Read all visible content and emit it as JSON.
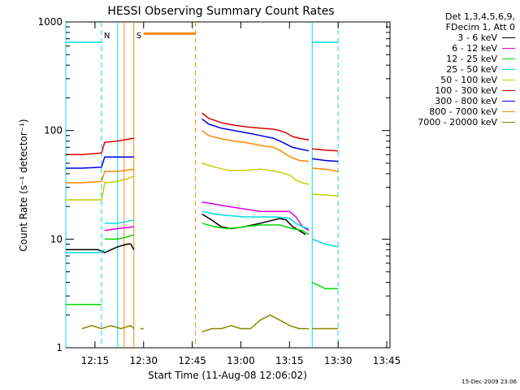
{
  "chart_data": {
    "type": "line",
    "title": "HESSI Observing Summary Count Rates",
    "xlabel": "Start Time (11-Aug-08 12:06:02)",
    "ylabel": "Count Rate (s⁻¹ detector⁻¹)",
    "x_unit": "minutes after 12:06:02",
    "xlim": [
      0,
      100
    ],
    "ylim": [
      1,
      1000
    ],
    "yscale": "log",
    "x_ticks": [
      {
        "value": 9,
        "label": "12:15"
      },
      {
        "value": 24,
        "label": "12:30"
      },
      {
        "value": 39,
        "label": "12:45"
      },
      {
        "value": 54,
        "label": "13:00"
      },
      {
        "value": 69,
        "label": "13:15"
      },
      {
        "value": 84,
        "label": "13:30"
      },
      {
        "value": 99,
        "label": "13:45"
      }
    ],
    "y_ticks": [
      {
        "value": 1,
        "label": "1"
      },
      {
        "value": 10,
        "label": "10"
      },
      {
        "value": 100,
        "label": "100"
      },
      {
        "value": 1000,
        "label": "1000"
      }
    ],
    "legend": {
      "title_lines": [
        "Det 1,3,4,5,6,9,",
        "FDecim 1, Att 0"
      ],
      "position": "right"
    },
    "series": [
      {
        "name": "3 - 6 keV",
        "color": "#000000",
        "segments": [
          [
            [
              0,
              8
            ],
            [
              5,
              8
            ],
            [
              10,
              8
            ],
            [
              12,
              7.5
            ],
            [
              14,
              8
            ],
            [
              16,
              8.5
            ],
            [
              19,
              9
            ],
            [
              20,
              9
            ],
            [
              21,
              8
            ]
          ],
          [
            [
              42,
              17
            ],
            [
              45,
              15
            ],
            [
              48,
              13
            ],
            [
              51,
              12.5
            ],
            [
              55,
              13
            ],
            [
              60,
              14
            ],
            [
              64,
              15
            ],
            [
              66,
              15.5
            ],
            [
              68,
              15
            ],
            [
              70,
              13
            ],
            [
              72,
              12
            ],
            [
              74,
              11
            ]
          ]
        ]
      },
      {
        "name": "6 - 12 keV",
        "color": "#dd00dd",
        "segments": [
          [
            [
              12,
              12
            ],
            [
              16,
              12.5
            ],
            [
              21,
              13
            ]
          ],
          [
            [
              42,
              22
            ],
            [
              46,
              21
            ],
            [
              50,
              20
            ],
            [
              55,
              19
            ],
            [
              60,
              18
            ],
            [
              65,
              18
            ],
            [
              69,
              18
            ],
            [
              71,
              16
            ],
            [
              73,
              13
            ],
            [
              75,
              12
            ]
          ]
        ]
      },
      {
        "name": "12 - 25 keV",
        "color": "#00dd00",
        "segments": [
          [
            [
              0,
              2.5
            ],
            [
              11,
              2.5
            ]
          ],
          [
            [
              12,
              10
            ],
            [
              16,
              10
            ],
            [
              19,
              10.5
            ],
            [
              21,
              11
            ]
          ],
          [
            [
              42,
              14
            ],
            [
              46,
              13
            ],
            [
              50,
              12.5
            ],
            [
              55,
              13
            ],
            [
              60,
              13.5
            ],
            [
              66,
              13.5
            ],
            [
              68,
              13
            ],
            [
              70,
              12.5
            ],
            [
              73,
              12
            ],
            [
              75,
              11
            ]
          ],
          [
            [
              76,
              4
            ],
            [
              80,
              3.5
            ],
            [
              84,
              3.5
            ]
          ]
        ]
      },
      {
        "name": "25 - 50 keV",
        "color": "#00dddd",
        "segments": [
          [
            [
              0,
              650
            ],
            [
              11,
              650
            ]
          ],
          [
            [
              0,
              7.5
            ],
            [
              5,
              7.5
            ],
            [
              10,
              7.5
            ],
            [
              12,
              8
            ]
          ],
          [
            [
              12,
              14
            ],
            [
              16,
              14
            ],
            [
              21,
              15
            ]
          ],
          [
            [
              42,
              18
            ],
            [
              46,
              17
            ],
            [
              50,
              16.5
            ],
            [
              55,
              16
            ],
            [
              60,
              16
            ],
            [
              65,
              16
            ],
            [
              69,
              15.5
            ],
            [
              71,
              14
            ],
            [
              73,
              13
            ],
            [
              75,
              12.5
            ]
          ],
          [
            [
              76,
              10
            ],
            [
              80,
              9
            ],
            [
              84,
              8.5
            ]
          ],
          [
            [
              76,
              650
            ],
            [
              84,
              650
            ]
          ]
        ]
      },
      {
        "name": "50 - 100 keV",
        "color": "#cccc00",
        "segments": [
          [
            [
              0,
              23
            ],
            [
              5,
              23
            ],
            [
              11,
              23
            ],
            [
              12,
              33
            ],
            [
              16,
              34
            ],
            [
              19,
              36
            ],
            [
              21,
              38
            ]
          ],
          [
            [
              42,
              50
            ],
            [
              46,
              46
            ],
            [
              50,
              43
            ],
            [
              55,
              43
            ],
            [
              60,
              44
            ],
            [
              65,
              42
            ],
            [
              69,
              39
            ],
            [
              71,
              35
            ],
            [
              73,
              33
            ],
            [
              75,
              32
            ]
          ],
          [
            [
              76,
              26
            ],
            [
              80,
              25.5
            ],
            [
              84,
              25
            ]
          ]
        ]
      },
      {
        "name": "100 - 300 keV",
        "color": "#dd0000",
        "segments": [
          [
            [
              0,
              60
            ],
            [
              5,
              60
            ],
            [
              11,
              62
            ],
            [
              12,
              78
            ],
            [
              16,
              80
            ],
            [
              19,
              83
            ],
            [
              21,
              85
            ]
          ],
          [
            [
              42,
              145
            ],
            [
              44,
              130
            ],
            [
              48,
              118
            ],
            [
              52,
              112
            ],
            [
              56,
              108
            ],
            [
              60,
              105
            ],
            [
              64,
              103
            ],
            [
              66,
              100
            ],
            [
              68,
              95
            ],
            [
              70,
              88
            ],
            [
              72,
              85
            ],
            [
              75,
              82
            ]
          ],
          [
            [
              76,
              68
            ],
            [
              80,
              66
            ],
            [
              84,
              65
            ]
          ]
        ]
      },
      {
        "name": "300 - 800 keV",
        "color": "#0000dd",
        "segments": [
          [
            [
              0,
              45
            ],
            [
              5,
              45
            ],
            [
              11,
              46
            ],
            [
              12,
              57
            ],
            [
              16,
              57
            ],
            [
              21,
              57
            ]
          ],
          [
            [
              42,
              128
            ],
            [
              44,
              115
            ],
            [
              48,
              105
            ],
            [
              52,
              100
            ],
            [
              56,
              95
            ],
            [
              60,
              90
            ],
            [
              64,
              85
            ],
            [
              66,
              80
            ],
            [
              68,
              75
            ],
            [
              70,
              70
            ],
            [
              72,
              68
            ],
            [
              75,
              65
            ]
          ],
          [
            [
              76,
              55
            ],
            [
              80,
              53
            ],
            [
              84,
              52
            ]
          ]
        ]
      },
      {
        "name": "800 - 7000 keV",
        "color": "#ff8800",
        "segments": [
          [
            [
              0,
              33
            ],
            [
              5,
              33
            ],
            [
              11,
              34
            ],
            [
              12,
              42
            ],
            [
              16,
              42
            ],
            [
              21,
              44
            ]
          ],
          [
            [
              42,
              100
            ],
            [
              44,
              90
            ],
            [
              48,
              84
            ],
            [
              52,
              80
            ],
            [
              56,
              77
            ],
            [
              60,
              73
            ],
            [
              64,
              70
            ],
            [
              66,
              66
            ],
            [
              68,
              60
            ],
            [
              70,
              56
            ],
            [
              72,
              53
            ],
            [
              75,
              52
            ]
          ],
          [
            [
              76,
              45
            ],
            [
              80,
              44
            ],
            [
              84,
              42
            ]
          ]
        ]
      },
      {
        "name": "7000 - 20000 keV",
        "color": "#888800",
        "segments": [
          [
            [
              5,
              1.5
            ],
            [
              8,
              1.6
            ],
            [
              11,
              1.5
            ],
            [
              14,
              1.6
            ],
            [
              17,
              1.5
            ],
            [
              20,
              1.6
            ],
            [
              21,
              1.5
            ]
          ],
          [
            [
              23,
              1.5
            ],
            [
              24,
              1.5
            ]
          ],
          [
            [
              42,
              1.4
            ],
            [
              45,
              1.5
            ],
            [
              48,
              1.5
            ],
            [
              51,
              1.6
            ],
            [
              54,
              1.5
            ],
            [
              57,
              1.5
            ],
            [
              60,
              1.8
            ],
            [
              63,
              2.0
            ],
            [
              66,
              1.8
            ],
            [
              69,
              1.6
            ],
            [
              72,
              1.5
            ],
            [
              75,
              1.5
            ]
          ],
          [
            [
              76,
              1.5
            ],
            [
              80,
              1.5
            ],
            [
              84,
              1.5
            ]
          ]
        ]
      }
    ],
    "flag_bars": [
      {
        "label": "",
        "color": "#ff8800",
        "x": [
          24,
          40
        ],
        "y": 780
      }
    ],
    "flag_markers": [
      {
        "label": "N",
        "color": "#00dddd",
        "x": 11
      },
      {
        "label": "S",
        "color": "#ff8800",
        "x": 21
      }
    ],
    "verticals": [
      {
        "x": 0,
        "color": "#00dddd",
        "style": "solid"
      },
      {
        "x": 11,
        "color": "#00dddd",
        "style": "dashed"
      },
      {
        "x": 16,
        "color": "#00dddd",
        "style": "solid"
      },
      {
        "x": 18,
        "color": "#ff8800",
        "style": "solid"
      },
      {
        "x": 21,
        "color": "#ff8800",
        "style": "solid"
      },
      {
        "x": 40,
        "color": "#ff8800",
        "style": "dashed"
      },
      {
        "x": 76,
        "color": "#00dddd",
        "style": "solid"
      },
      {
        "x": 84,
        "color": "#00dddd",
        "style": "dashed"
      }
    ]
  },
  "footer": {
    "timestamp": "15-Dec-2009 23:06"
  }
}
